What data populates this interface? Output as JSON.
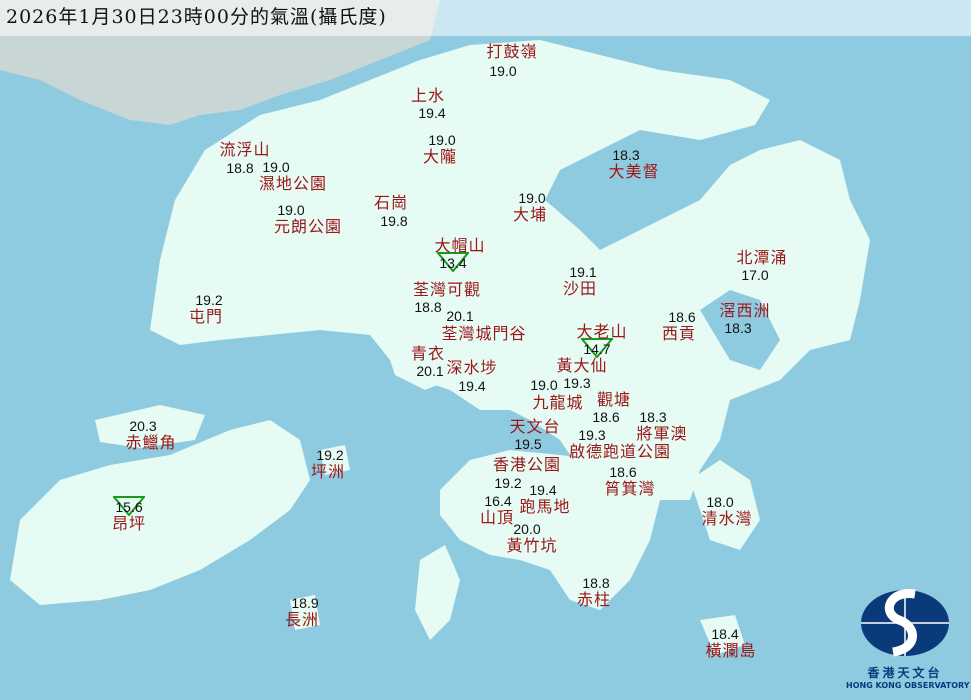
{
  "title": "2026年1月30日23時00分的氣溫(攝氏度)",
  "colors": {
    "sea": "#8fcbe0",
    "land": "#e6fbf4",
    "station_label": "#9b1616",
    "value": "#111111",
    "min_marker": "#1a9a1a",
    "logo": "#0b3a7a"
  },
  "stations": [
    {
      "name": "打鼓嶺",
      "temp": "19.0"
    },
    {
      "name": "上水",
      "temp": "19.4"
    },
    {
      "name": "大隴",
      "temp": "19.0"
    },
    {
      "name": "流浮山",
      "temp": "18.8"
    },
    {
      "name": "濕地公園",
      "temp": "19.0"
    },
    {
      "name": "大美督",
      "temp": "18.3"
    },
    {
      "name": "石崗",
      "temp": "19.8"
    },
    {
      "name": "元朗公園",
      "temp": "19.0"
    },
    {
      "name": "大埔",
      "temp": "19.0"
    },
    {
      "name": "大帽山",
      "temp": "13.4",
      "min_marker": true
    },
    {
      "name": "北潭涌",
      "temp": "17.0"
    },
    {
      "name": "沙田",
      "temp": "19.1"
    },
    {
      "name": "荃灣可觀",
      "temp": "18.8"
    },
    {
      "name": "屯門",
      "temp": "19.2"
    },
    {
      "name": "西貢",
      "temp": "18.6"
    },
    {
      "name": "滘西洲",
      "temp": "18.3"
    },
    {
      "name": "荃灣城門谷",
      "temp": "20.1"
    },
    {
      "name": "大老山",
      "temp": "14.7",
      "min_marker": true
    },
    {
      "name": "青衣",
      "temp": "20.1"
    },
    {
      "name": "深水埗",
      "temp": "19.4"
    },
    {
      "name": "黃大仙",
      "temp": "19.3"
    },
    {
      "name": "九龍城",
      "temp": "19.0"
    },
    {
      "name": "觀塘",
      "temp": "18.6"
    },
    {
      "name": "將軍澳",
      "temp": "18.3"
    },
    {
      "name": "天文台",
      "temp": "19.5"
    },
    {
      "name": "啟德跑道公園",
      "temp": "19.3"
    },
    {
      "name": "赤鱲角",
      "temp": "20.3"
    },
    {
      "name": "坪洲",
      "temp": "19.2"
    },
    {
      "name": "香港公園",
      "temp": "19.2"
    },
    {
      "name": "筲箕灣",
      "temp": "18.6"
    },
    {
      "name": "跑馬地",
      "temp": "19.4"
    },
    {
      "name": "山頂",
      "temp": "16.4"
    },
    {
      "name": "清水灣",
      "temp": "18.0"
    },
    {
      "name": "昂坪",
      "temp": "15.6",
      "min_marker": true
    },
    {
      "name": "黃竹坑",
      "temp": "20.0"
    },
    {
      "name": "赤柱",
      "temp": "18.8"
    },
    {
      "name": "長洲",
      "temp": "18.9"
    },
    {
      "name": "橫瀾島",
      "temp": "18.4"
    }
  ],
  "logo": {
    "name_zh": "香港天文台",
    "name_en": "HONG KONG OBSERVATORY"
  }
}
